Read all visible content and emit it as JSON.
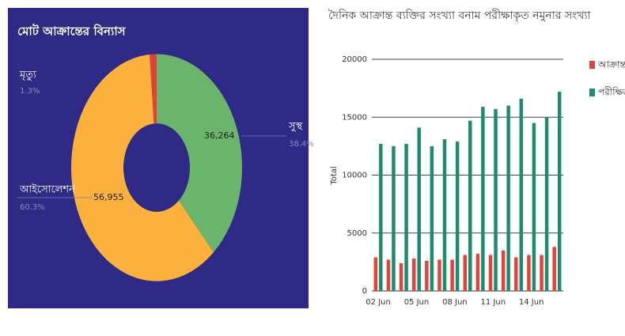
{
  "chart_data": [
    {
      "type": "pie",
      "title": "মোট আক্রান্তের বিন্যাস",
      "categories": [
        "সুস্থ",
        "আইসোলেশন",
        "মৃত্যু"
      ],
      "values": [
        36264,
        56955,
        1228
      ],
      "value_labels": [
        "36,264",
        "56,955",
        null
      ],
      "percents": [
        38.4,
        60.3,
        1.3
      ],
      "percent_labels": [
        "38.4%",
        "60.3%",
        "1.3%"
      ],
      "colors": [
        "#6ab46b",
        "#fbb13c",
        "#db4437"
      ],
      "background": "#2e2a85"
    },
    {
      "type": "bar",
      "title": "দৈনিক আক্রান্ত ব্যক্তির সংখ্যা বনাম পরীক্ষাকৃত নমুনার সংখ্যা",
      "y_label": "Total",
      "categories": [
        "02 Jun",
        null,
        null,
        "05 Jun",
        null,
        null,
        "08 Jun",
        null,
        null,
        "11 Jun",
        null,
        null,
        "14 Jun",
        null,
        null
      ],
      "series": [
        {
          "name": "আক্রান্ত",
          "color": "#e0453c",
          "values": [
            2900,
            2700,
            2400,
            2800,
            2600,
            2700,
            2700,
            3100,
            3200,
            3100,
            3500,
            2900,
            3100,
            3100,
            3800
          ]
        },
        {
          "name": "পরীক্ষিত",
          "color": "#1e8a6e",
          "values": [
            12700,
            12500,
            12700,
            14100,
            12500,
            13100,
            12900,
            14700,
            15900,
            15700,
            16000,
            16600,
            14500,
            15000,
            17200
          ]
        }
      ],
      "ylim": [
        0,
        20000
      ],
      "yticks": [
        0,
        5000,
        10000,
        15000,
        20000
      ],
      "grid": true,
      "legend": "right"
    }
  ]
}
